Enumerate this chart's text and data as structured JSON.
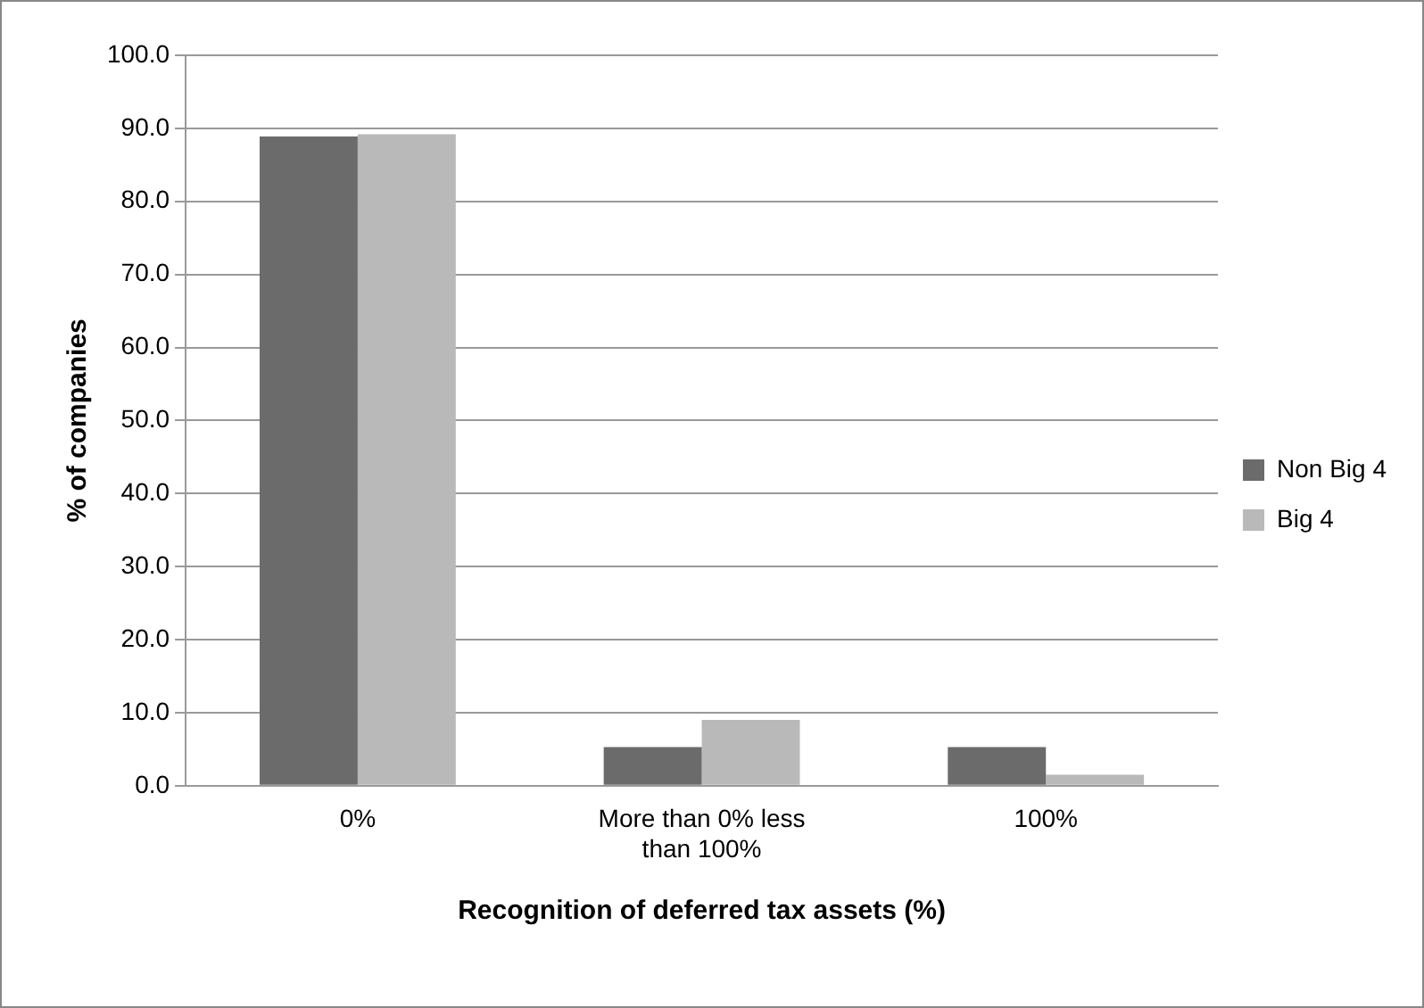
{
  "chart_data": {
    "type": "bar",
    "xlabel": "Recognition of deferred tax assets (%)",
    "ylabel": "% of companies",
    "categories": [
      "0%",
      "More than 0% less than 100%",
      "100%"
    ],
    "series": [
      {
        "name": "Non Big 4",
        "color": "#6b6b6b",
        "values": [
          88.9,
          5.3,
          5.3
        ]
      },
      {
        "name": "Big 4",
        "color": "#b9b9b9",
        "values": [
          89.2,
          9.0,
          1.5
        ]
      }
    ],
    "ylim": [
      0,
      100
    ],
    "yticks": [
      {
        "value": 0,
        "label": "0.0"
      },
      {
        "value": 10,
        "label": "10.0"
      },
      {
        "value": 20,
        "label": "20.0"
      },
      {
        "value": 30,
        "label": "30.0"
      },
      {
        "value": 40,
        "label": "40.0"
      },
      {
        "value": 50,
        "label": "50.0"
      },
      {
        "value": 60,
        "label": "60.0"
      },
      {
        "value": 70,
        "label": "70.0"
      },
      {
        "value": 80,
        "label": "80.0"
      },
      {
        "value": 90,
        "label": "90.0"
      },
      {
        "value": 100,
        "label": "100.0"
      }
    ],
    "grid": "y",
    "legend": "right"
  }
}
